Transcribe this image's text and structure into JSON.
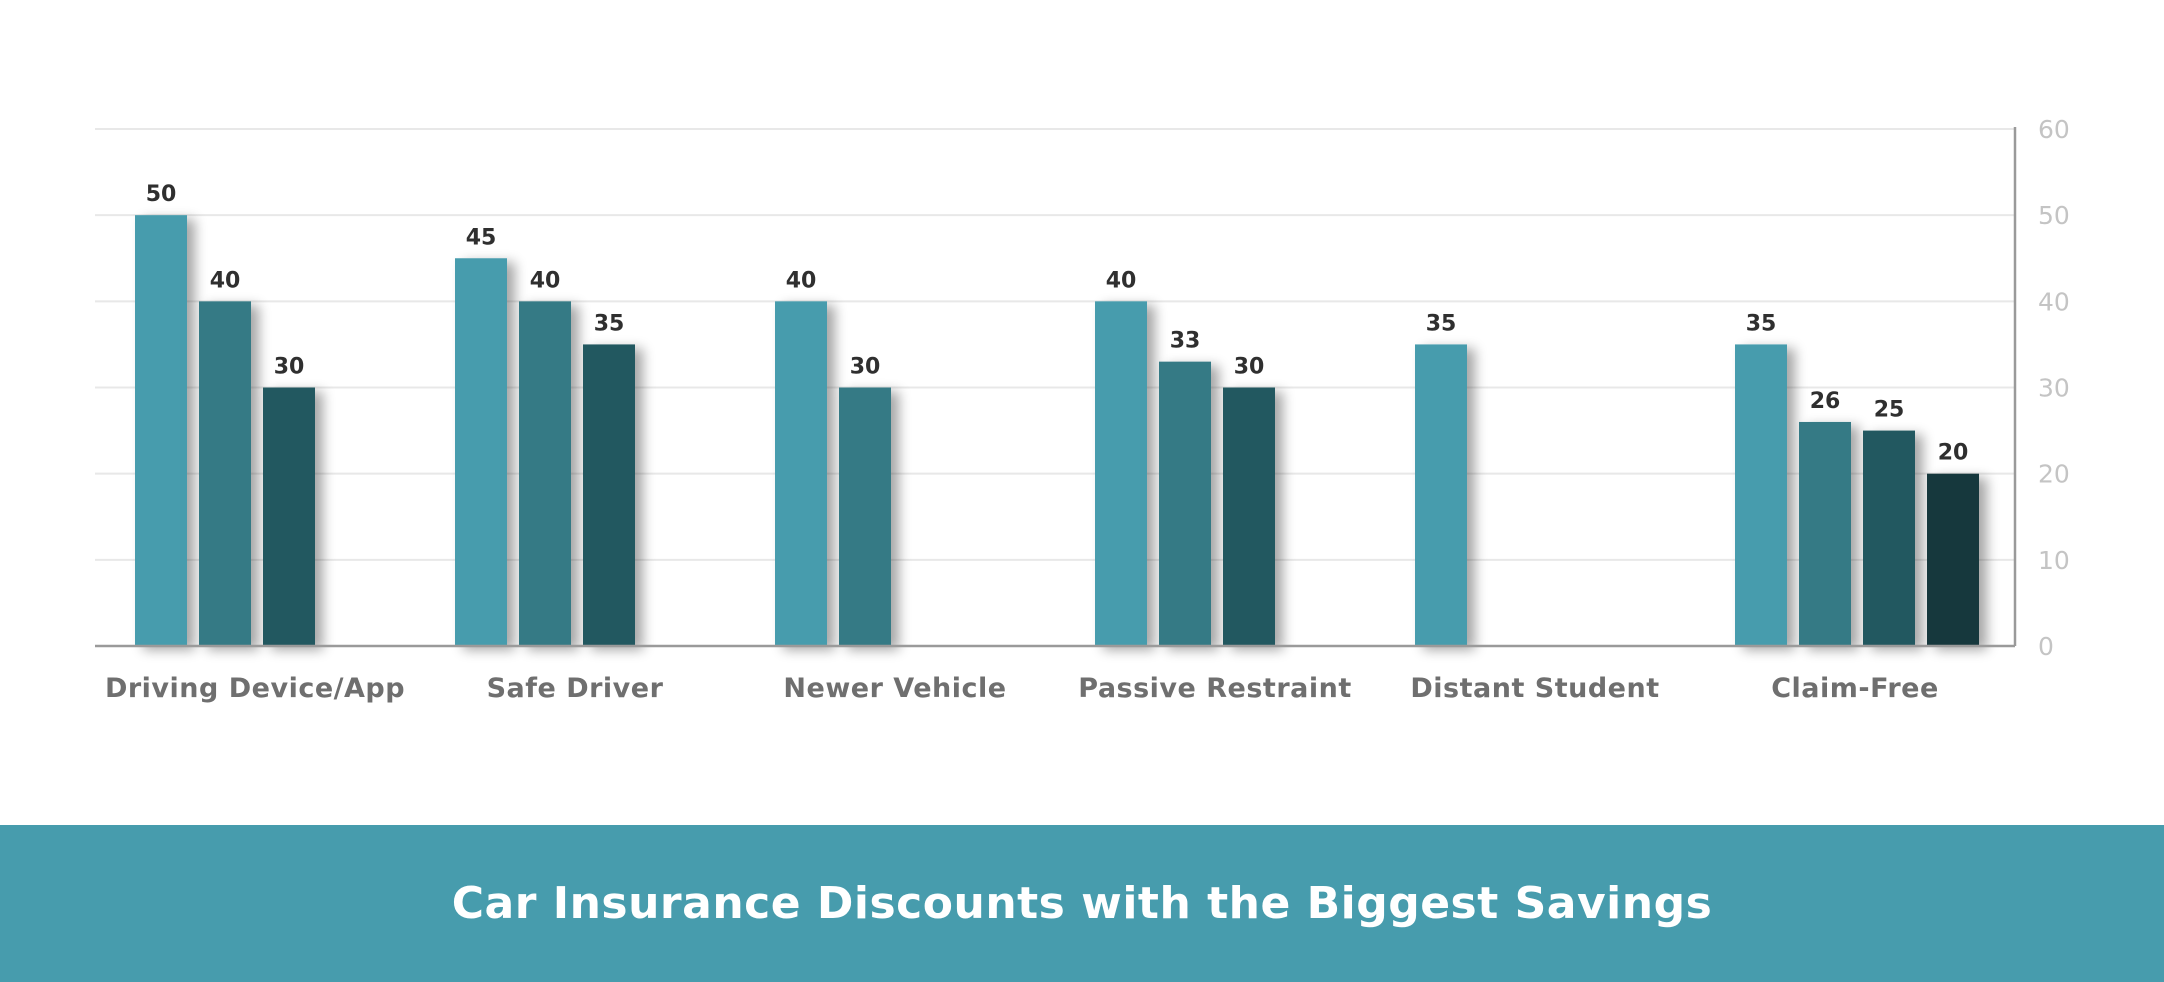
{
  "chart_data": {
    "type": "bar",
    "title": "Car Insurance Discounts with the Biggest Savings",
    "xlabel": "",
    "ylabel": "",
    "categories": [
      "Driving Device/App",
      "Safe Driver",
      "Newer Vehicle",
      "Passive Restraint",
      "Distant Student",
      "Claim-Free"
    ],
    "bars": [
      [
        50,
        40,
        30
      ],
      [
        45,
        40,
        35
      ],
      [
        40,
        30
      ],
      [
        40,
        33,
        30
      ],
      [
        35
      ],
      [
        35,
        26,
        25,
        20
      ]
    ],
    "ylim": [
      0,
      60
    ],
    "yticks": [
      "0",
      "10",
      "20",
      "30",
      "40",
      "50",
      "60"
    ],
    "y_axis_side": "right",
    "grid": true,
    "legend": "none",
    "colors": [
      "#479cad",
      "#347a85",
      "#225961",
      "#18383d"
    ],
    "grid_color": "#e8e8e8",
    "axis_color": "#9a9a9a",
    "banner_color": "#479cad"
  }
}
